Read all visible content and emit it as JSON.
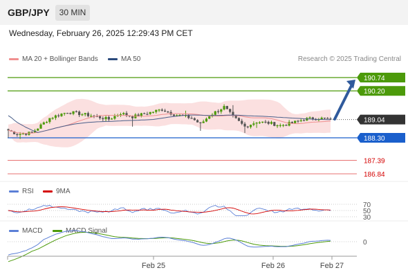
{
  "header": {
    "pair": "GBP/JPY",
    "timeframe": "30 MIN"
  },
  "timestamp": "Wednesday, February 26, 2025 12:29:43 PM CET",
  "legend": {
    "ma20": "MA 20 + Bollinger Bands",
    "ma50": "MA 50",
    "credit": "Research © 2025 Trading Central"
  },
  "colors": {
    "green": "#4c9a0a",
    "blue": "#1a5fcc",
    "red": "#d40000",
    "dark": "#333333",
    "arrow": "#2f5a9c",
    "bollinger": "#fbe0e0",
    "ma20": "#f08f8f",
    "ma50": "#4a5f8a"
  },
  "rsi_legend": {
    "rsi": "RSI",
    "ma": "9MA"
  },
  "macd_legend": {
    "macd": "MACD",
    "signal": "MACD Signal"
  },
  "chart_data": [
    {
      "type": "candlestick",
      "title": "GBP/JPY",
      "subtitle": "30 MIN",
      "x_tick_labels": [
        "Feb 25",
        "Feb 26",
        "Feb 27"
      ],
      "price_levels": [
        {
          "label": "190.74",
          "color": "#4c9a0a",
          "kind": "target"
        },
        {
          "label": "190.20",
          "color": "#4c9a0a",
          "kind": "resistance"
        },
        {
          "label": "189.04",
          "color": "#333333",
          "kind": "current"
        },
        {
          "label": "188.30",
          "color": "#1a5fcc",
          "kind": "pivot"
        },
        {
          "label": "187.39",
          "color": "#d40000",
          "kind": "support"
        },
        {
          "label": "186.84",
          "color": "#d40000",
          "kind": "support"
        }
      ],
      "indicators": [
        "MA 20 + Bollinger Bands",
        "MA 50"
      ],
      "last_price": 189.04
    },
    {
      "type": "line",
      "title": "RSI",
      "series": [
        {
          "name": "RSI"
        },
        {
          "name": "9MA"
        }
      ],
      "tick_labels": [
        "70",
        "50",
        "30"
      ]
    },
    {
      "type": "line",
      "title": "MACD",
      "series": [
        {
          "name": "MACD"
        },
        {
          "name": "MACD Signal"
        }
      ],
      "tick_labels": [
        "0"
      ]
    }
  ]
}
